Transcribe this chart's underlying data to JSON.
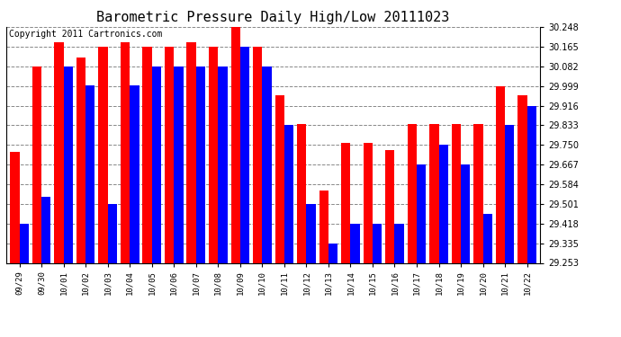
{
  "title": "Barometric Pressure Daily High/Low 20111023",
  "copyright": "Copyright 2011 Cartronics.com",
  "dates": [
    "09/29",
    "09/30",
    "10/01",
    "10/02",
    "10/03",
    "10/04",
    "10/05",
    "10/06",
    "10/07",
    "10/08",
    "10/09",
    "10/10",
    "10/11",
    "10/12",
    "10/13",
    "10/14",
    "10/15",
    "10/16",
    "10/17",
    "10/18",
    "10/19",
    "10/20",
    "10/21",
    "10/22"
  ],
  "highs": [
    29.72,
    30.082,
    30.185,
    30.12,
    30.165,
    30.185,
    30.165,
    30.165,
    30.185,
    30.165,
    30.248,
    30.165,
    29.96,
    29.84,
    29.56,
    29.76,
    29.76,
    29.73,
    29.84,
    29.84,
    29.84,
    29.84,
    29.999,
    29.96
  ],
  "lows": [
    29.418,
    29.53,
    30.082,
    30.0,
    29.5,
    30.0,
    30.082,
    30.082,
    30.082,
    30.082,
    30.165,
    30.082,
    29.833,
    29.5,
    29.335,
    29.418,
    29.418,
    29.418,
    29.667,
    29.75,
    29.667,
    29.46,
    29.833,
    29.916
  ],
  "y_ticks": [
    29.253,
    29.335,
    29.418,
    29.501,
    29.584,
    29.667,
    29.75,
    29.833,
    29.916,
    29.999,
    30.082,
    30.165,
    30.248
  ],
  "y_min": 29.253,
  "y_max": 30.248,
  "high_color": "#ff0000",
  "low_color": "#0000ff",
  "bg_color": "#ffffff",
  "plot_bg_color": "#ffffff",
  "grid_color": "#888888",
  "title_fontsize": 11,
  "copyright_fontsize": 7
}
